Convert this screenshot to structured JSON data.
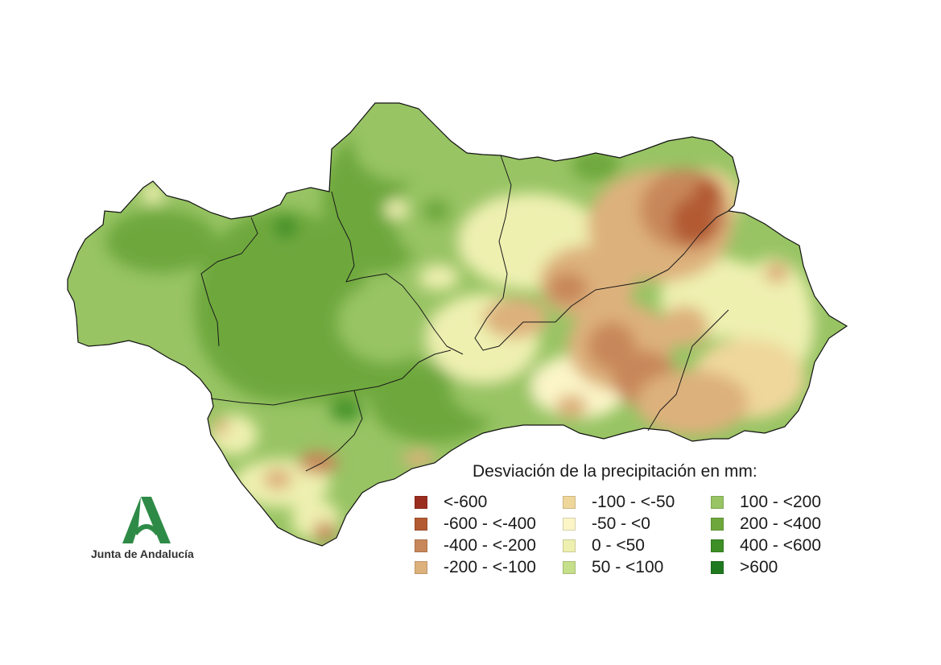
{
  "legend": {
    "title": "Desviación de la precipitación en mm:",
    "classes": [
      {
        "label": "<-600",
        "color": "#9b2d1f"
      },
      {
        "label": "-600 - <-400",
        "color": "#b35a32"
      },
      {
        "label": "-400 - <-200",
        "color": "#c8875a"
      },
      {
        "label": "-200 - <-100",
        "color": "#ddb17c"
      },
      {
        "label": "-100 - <-50",
        "color": "#efd79b"
      },
      {
        "label": "-50 - <0",
        "color": "#fbf5c8"
      },
      {
        "label": "0 - <50",
        "color": "#eef0b0"
      },
      {
        "label": "50 - <100",
        "color": "#c6df8a"
      },
      {
        "label": "100 - <200",
        "color": "#98c464"
      },
      {
        "label": "200 - <400",
        "color": "#6ea83c"
      },
      {
        "label": ">600",
        "color": "#1f7a1f"
      },
      {
        "label": "400 - <600",
        "color": "#3d8f26"
      }
    ]
  },
  "logo": {
    "text": "Junta de Andalucía",
    "color": "#2e8b47",
    "icon": "junta-de-andalucia-logo-icon"
  }
}
